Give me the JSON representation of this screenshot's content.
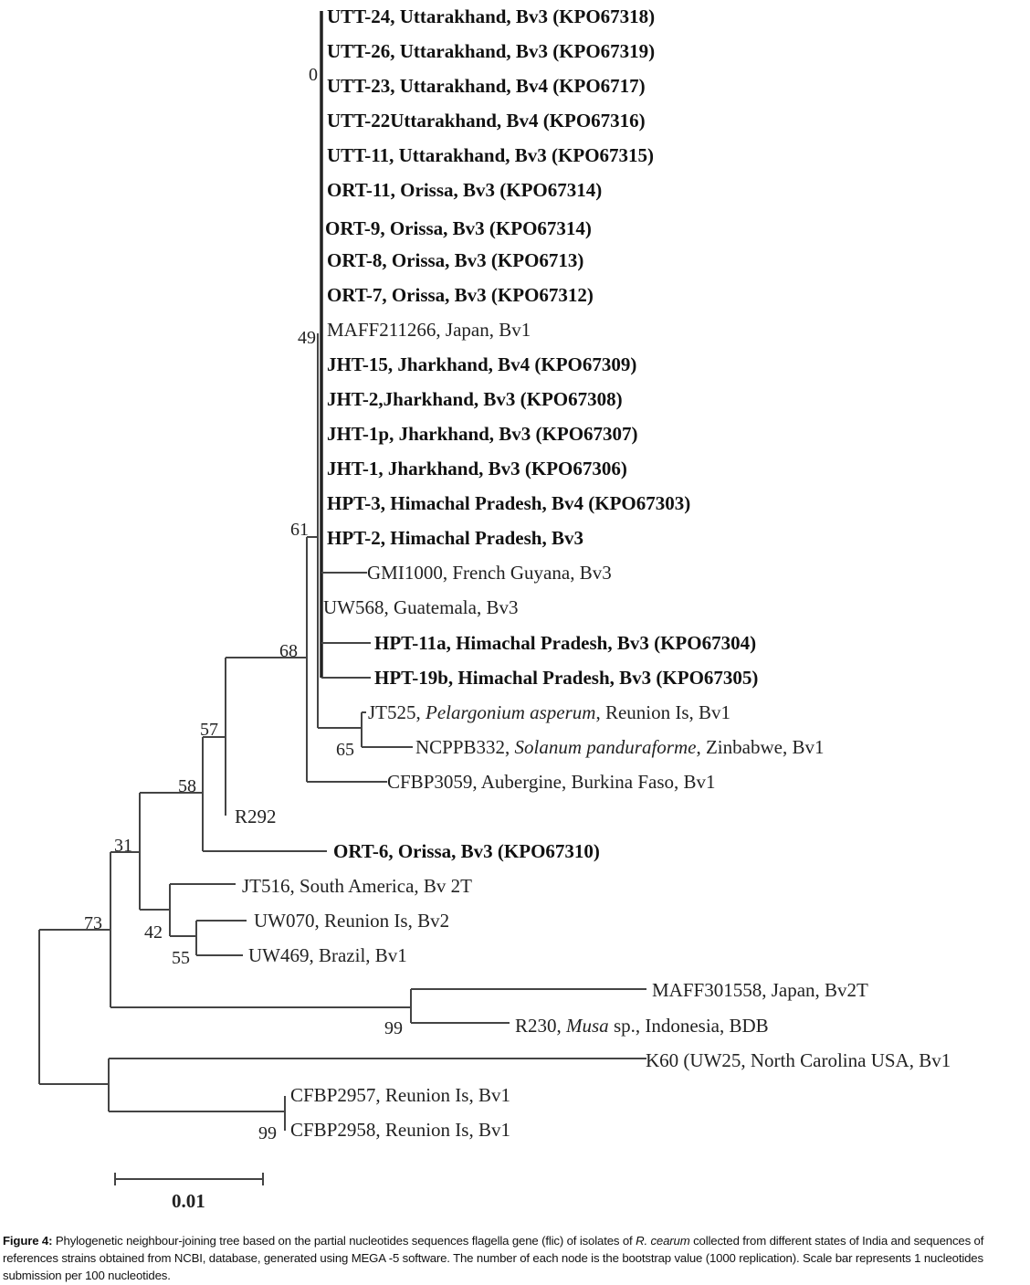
{
  "tree": {
    "tips": [
      {
        "parts": [
          {
            "t": "UTT-24, Uttarakhand, Bv3 (KPO67318)"
          }
        ],
        "bold": true
      },
      {
        "parts": [
          {
            "t": "UTT-26, Uttarakhand, Bv3 (KPO67319)"
          }
        ],
        "bold": true
      },
      {
        "parts": [
          {
            "t": "UTT-23, Uttarakhand, Bv4 (KPO6717)"
          }
        ],
        "bold": true
      },
      {
        "parts": [
          {
            "t": "UTT-22Uttarakhand, Bv4 (KPO67316)"
          }
        ],
        "bold": true
      },
      {
        "parts": [
          {
            "t": "UTT-11, Uttarakhand, Bv3 (KPO67315)"
          }
        ],
        "bold": true
      },
      {
        "parts": [
          {
            "t": "ORT-11, Orissa, Bv3 (KPO67314)"
          }
        ],
        "bold": true
      },
      {
        "parts": [
          {
            "t": "ORT-9, Orissa, Bv3 (KPO67314)"
          }
        ],
        "bold": true
      },
      {
        "parts": [
          {
            "t": "ORT-8, Orissa, Bv3 (KPO6713)"
          }
        ],
        "bold": true
      },
      {
        "parts": [
          {
            "t": "ORT-7, Orissa, Bv3 (KPO67312)"
          }
        ],
        "bold": true
      },
      {
        "parts": [
          {
            "t": "MAFF211266, Japan, Bv1"
          }
        ],
        "bold": false
      },
      {
        "parts": [
          {
            "t": "JHT-15, Jharkhand, Bv4 (KPO67309)"
          }
        ],
        "bold": true
      },
      {
        "parts": [
          {
            "t": "JHT-2,Jharkhand, Bv3 (KPO67308)"
          }
        ],
        "bold": true
      },
      {
        "parts": [
          {
            "t": "JHT-1p, Jharkhand, Bv3 (KPO67307)"
          }
        ],
        "bold": true
      },
      {
        "parts": [
          {
            "t": "JHT-1, Jharkhand, Bv3 (KPO67306)"
          }
        ],
        "bold": true
      },
      {
        "parts": [
          {
            "t": "HPT-3, Himachal Pradesh, Bv4 (KPO67303)"
          }
        ],
        "bold": true
      },
      {
        "parts": [
          {
            "t": "HPT-2, Himachal Pradesh, Bv3"
          }
        ],
        "bold": true
      },
      {
        "parts": [
          {
            "t": "GMI1000, French Guyana, Bv3"
          }
        ],
        "bold": false
      },
      {
        "parts": [
          {
            "t": "UW568, Guatemala, Bv3"
          }
        ],
        "bold": false
      },
      {
        "parts": [
          {
            "t": "HPT-11a, Himachal Pradesh, Bv3 (KPO67304)"
          }
        ],
        "bold": true
      },
      {
        "parts": [
          {
            "t": "HPT-19b, Himachal Pradesh, Bv3 (KPO67305)"
          }
        ],
        "bold": true
      },
      {
        "parts": [
          {
            "t": "JT525, "
          },
          {
            "t": "Pelargonium asperum",
            "i": true
          },
          {
            "t": ", Reunion Is, Bv1"
          }
        ],
        "bold": false
      },
      {
        "parts": [
          {
            "t": "NCPPB332, "
          },
          {
            "t": "Solanum panduraforme",
            "i": true
          },
          {
            "t": ", Zinbabwe, Bv1"
          }
        ],
        "bold": false
      },
      {
        "parts": [
          {
            "t": "CFBP3059, Aubergine, Burkina Faso, Bv1"
          }
        ],
        "bold": false
      },
      {
        "parts": [
          {
            "t": "R292"
          }
        ],
        "bold": false
      },
      {
        "parts": [
          {
            "t": "ORT-6, Orissa, Bv3 (KPO67310)"
          }
        ],
        "bold": true
      },
      {
        "parts": [
          {
            "t": "JT516, South America, Bv 2T"
          }
        ],
        "bold": false
      },
      {
        "parts": [
          {
            "t": "UW070, Reunion Is, Bv2"
          }
        ],
        "bold": false
      },
      {
        "parts": [
          {
            "t": "UW469, Brazil, Bv1"
          }
        ],
        "bold": false
      },
      {
        "parts": [
          {
            "t": "MAFF301558, Japan, Bv2T"
          }
        ],
        "bold": false
      },
      {
        "parts": [
          {
            "t": "R230, "
          },
          {
            "t": "Musa",
            "i": true
          },
          {
            "t": " sp., Indonesia, BDB"
          }
        ],
        "bold": false
      },
      {
        "parts": [
          {
            "t": "K60 (UW25, North Carolina USA, Bv1"
          }
        ],
        "bold": false
      },
      {
        "parts": [
          {
            "t": "CFBP2957, Reunion Is, Bv1"
          }
        ],
        "bold": false
      },
      {
        "parts": [
          {
            "t": "CFBP2958, Reunion Is, Bv1"
          }
        ],
        "bold": false
      }
    ],
    "bootstrap": [
      "0",
      "49",
      "61",
      "68",
      "57",
      "65",
      "58",
      "31",
      "42",
      "73",
      "55",
      "99",
      "99"
    ],
    "scale_bar": "0.01"
  },
  "caption": {
    "label": "Figure 4:",
    "text_before": " Phylogenetic neighbour-joining tree based on the partial nucleotides sequences flagella gene (flic) of isolates of ",
    "species": "R. cearum",
    "text_after": " collected from different states of India and sequences of references strains obtained from NCBI, database, generated using MEGA -5 software. The number of each node is the bootstrap value (1000 replication). Scale bar represents 1 nucleotides submission per 100 nucleotides."
  }
}
